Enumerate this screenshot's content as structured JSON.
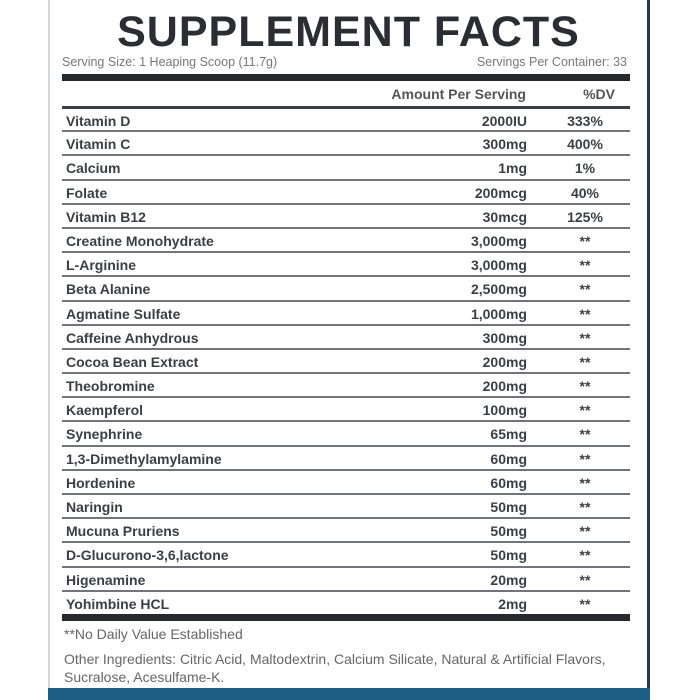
{
  "title": "SUPPLEMENT FACTS",
  "serving_size": "Serving Size: 1 Heaping Scoop (11.7g)",
  "servings_per_container": "Servings Per Container: 33",
  "headers": {
    "amount": "Amount Per Serving",
    "dv": "%DV"
  },
  "rows": [
    {
      "name": "Vitamin D",
      "amount": "2000IU",
      "dv": "333%"
    },
    {
      "name": "Vitamin C",
      "amount": "300mg",
      "dv": "400%"
    },
    {
      "name": "Calcium",
      "amount": "1mg",
      "dv": "1%"
    },
    {
      "name": "Folate",
      "amount": "200mcg",
      "dv": "40%"
    },
    {
      "name": "Vitamin B12",
      "amount": "30mcg",
      "dv": "125%"
    },
    {
      "name": "Creatine Monohydrate",
      "amount": "3,000mg",
      "dv": "**"
    },
    {
      "name": "L-Arginine",
      "amount": "3,000mg",
      "dv": "**"
    },
    {
      "name": "Beta Alanine",
      "amount": "2,500mg",
      "dv": "**"
    },
    {
      "name": "Agmatine Sulfate",
      "amount": "1,000mg",
      "dv": "**"
    },
    {
      "name": "Caffeine Anhydrous",
      "amount": "300mg",
      "dv": "**"
    },
    {
      "name": "Cocoa Bean Extract",
      "amount": "200mg",
      "dv": "**"
    },
    {
      "name": "Theobromine",
      "amount": "200mg",
      "dv": "**"
    },
    {
      "name": "Kaempferol",
      "amount": "100mg",
      "dv": "**"
    },
    {
      "name": "Synephrine",
      "amount": "65mg",
      "dv": "**"
    },
    {
      "name": "1,3-Dimethylamylamine",
      "amount": "60mg",
      "dv": "**"
    },
    {
      "name": "Hordenine",
      "amount": "60mg",
      "dv": "**"
    },
    {
      "name": "Naringin",
      "amount": "50mg",
      "dv": "**"
    },
    {
      "name": "Mucuna Pruriens",
      "amount": "50mg",
      "dv": "**"
    },
    {
      "name": "D-Glucurono-3,6,lactone",
      "amount": "50mg",
      "dv": "**"
    },
    {
      "name": "Higenamine",
      "amount": "20mg",
      "dv": "**"
    },
    {
      "name": "Yohimbine HCL",
      "amount": "2mg",
      "dv": "**"
    }
  ],
  "footnote": "**No Daily Value Established",
  "other_ingredients": "Other Ingredients: Citric Acid, Maltodextrin, Calcium Silicate, Natural & Artificial Flavors, Sucralose, Acesulfame-K.",
  "colors": {
    "text": "#3a3f45",
    "bottom_band": "#1f5f86"
  }
}
